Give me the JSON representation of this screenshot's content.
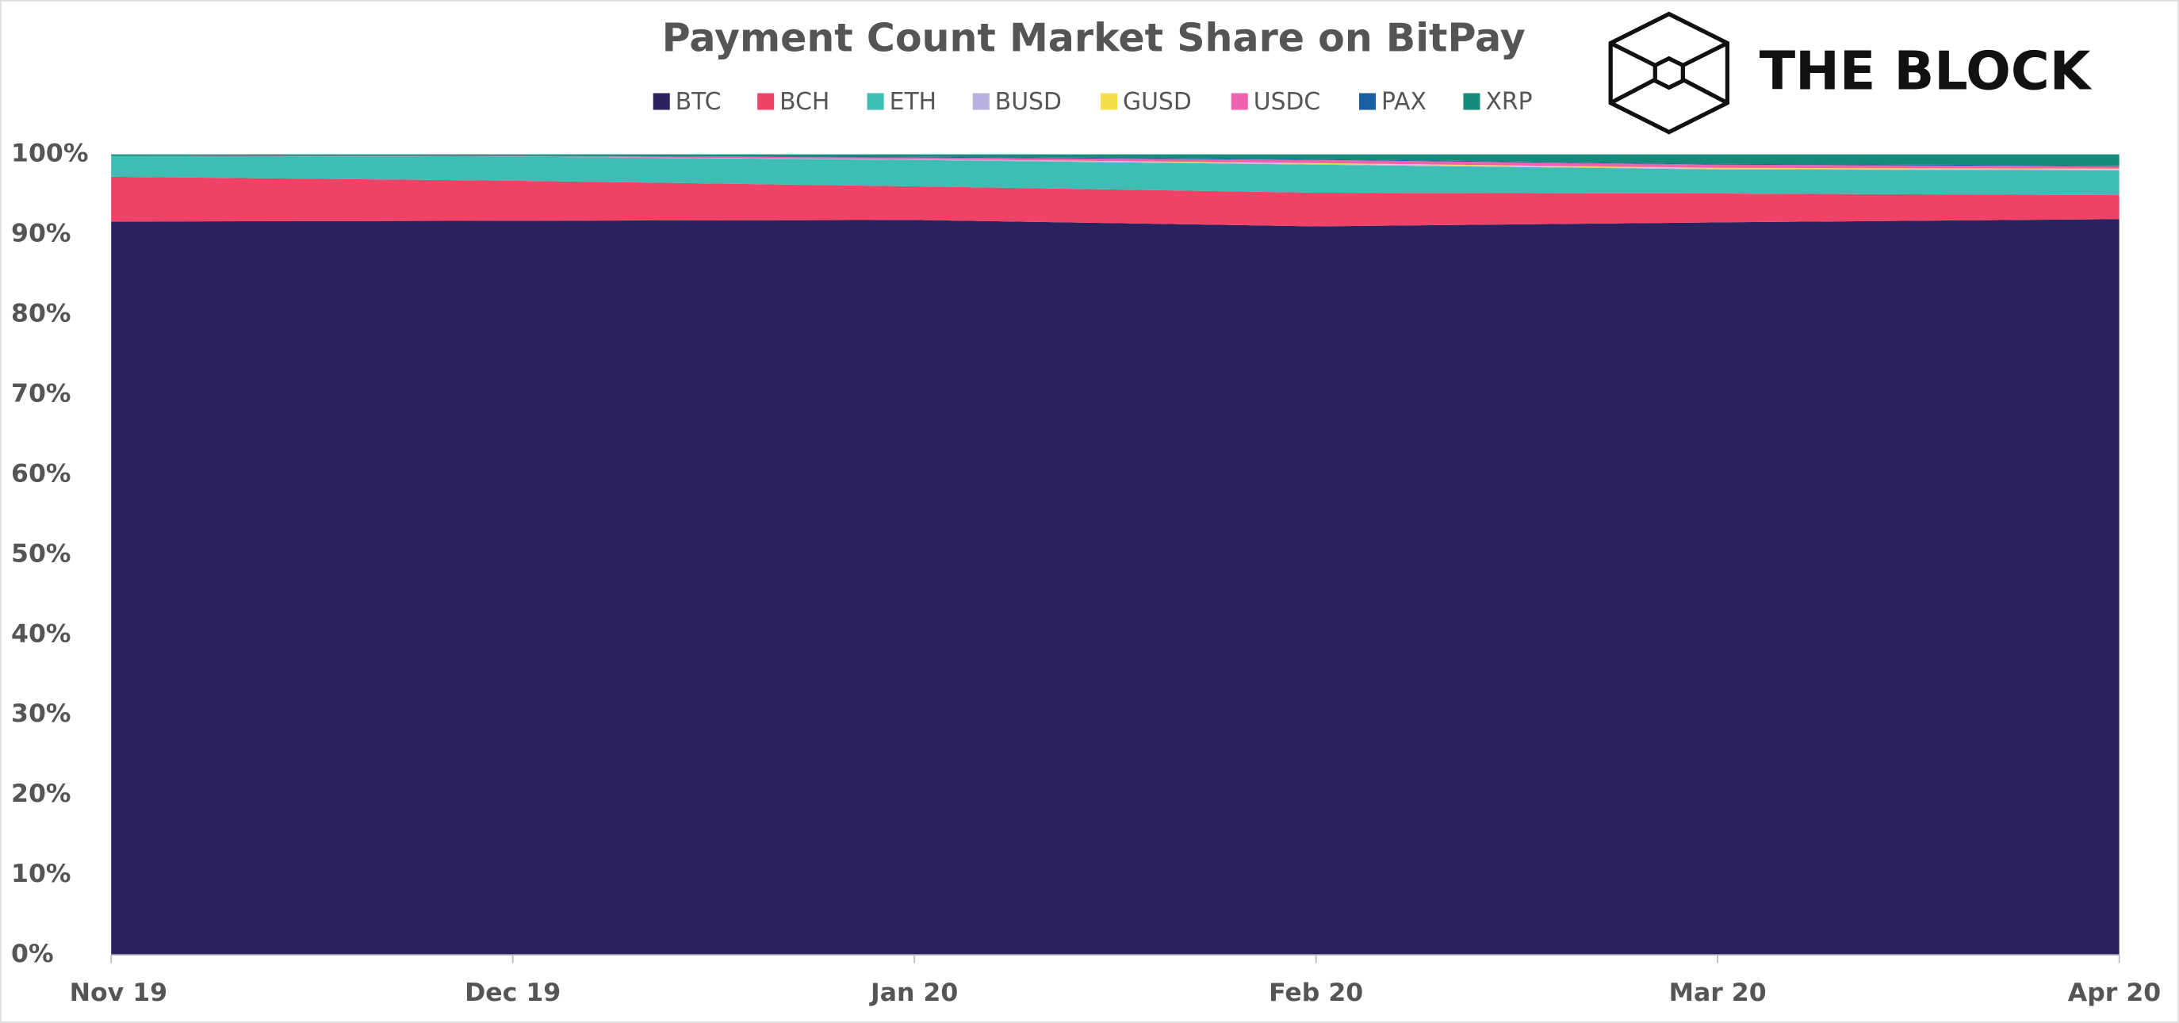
{
  "chart_data": {
    "type": "stacked-area",
    "title": "Payment Count Market Share on BitPay",
    "logo": "THE BLOCK",
    "categories": [
      "Nov 19",
      "Dec 19",
      "Jan 20",
      "Feb 20",
      "Mar 20",
      "Apr 20"
    ],
    "series": [
      {
        "name": "BTC",
        "color": "#29225c",
        "values": [
          91.6,
          91.7,
          91.8,
          91.0,
          91.5,
          91.9
        ]
      },
      {
        "name": "BCH",
        "color": "#ef4266",
        "values": [
          5.6,
          5.0,
          4.2,
          4.2,
          3.6,
          3.0
        ]
      },
      {
        "name": "ETH",
        "color": "#3dbdb3",
        "values": [
          2.6,
          3.0,
          3.3,
          3.5,
          3.0,
          3.1
        ]
      },
      {
        "name": "BUSD",
        "color": "#b9afe0",
        "values": [
          0,
          0,
          0.1,
          0.1,
          0.1,
          0.1
        ]
      },
      {
        "name": "GUSD",
        "color": "#f6de4b",
        "values": [
          0,
          0,
          0,
          0.1,
          0.1,
          0.1
        ]
      },
      {
        "name": "USDC",
        "color": "#ee63ae",
        "values": [
          0,
          0.1,
          0.2,
          0.4,
          0.4,
          0.3
        ]
      },
      {
        "name": "PAX",
        "color": "#1a5fa0",
        "values": [
          0,
          0,
          0.1,
          0.1,
          0.1,
          0.1
        ]
      },
      {
        "name": "XRP",
        "color": "#168b7a",
        "values": [
          0.2,
          0.2,
          0.3,
          0.6,
          1.2,
          1.4
        ]
      }
    ],
    "ylim": [
      0,
      100
    ],
    "yticks": [
      {
        "value": 0,
        "label": "0%"
      },
      {
        "value": 10,
        "label": "10%"
      },
      {
        "value": 20,
        "label": "20%"
      },
      {
        "value": 30,
        "label": "30%"
      },
      {
        "value": 40,
        "label": "40%"
      },
      {
        "value": 50,
        "label": "50%"
      },
      {
        "value": 60,
        "label": "60%"
      },
      {
        "value": 70,
        "label": "70%"
      },
      {
        "value": 80,
        "label": "80%"
      },
      {
        "value": 90,
        "label": "90%"
      },
      {
        "value": 100,
        "label": "100%"
      }
    ]
  }
}
